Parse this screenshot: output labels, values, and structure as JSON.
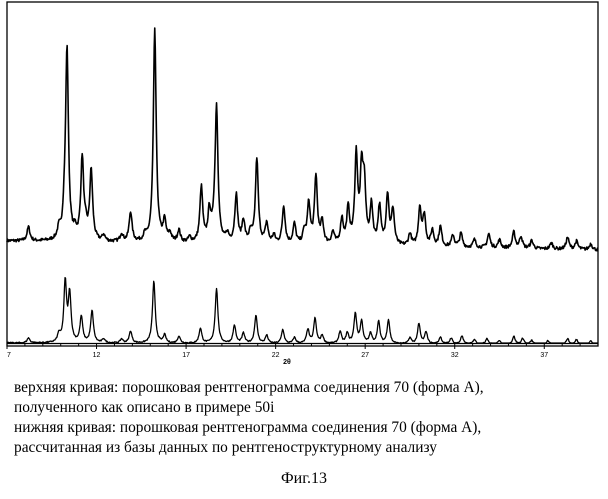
{
  "chart_data": {
    "type": "line",
    "title": "",
    "xlabel": "2θ",
    "ylabel": "",
    "xlim": [
      7,
      40
    ],
    "x_ticks": [
      7,
      12,
      17,
      22,
      27,
      32,
      37
    ],
    "grid": false,
    "legend": "none",
    "baseline": {
      "upper": 15,
      "lower": 3
    },
    "series": [
      {
        "peaks": [
          [
            8.2,
            14
          ],
          [
            9.9,
            10
          ],
          [
            10.2,
            18
          ],
          [
            10.35,
            190
          ],
          [
            10.8,
            8
          ],
          [
            11.2,
            82
          ],
          [
            11.4,
            10
          ],
          [
            11.7,
            70
          ],
          [
            12.4,
            6
          ],
          [
            13.4,
            8
          ],
          [
            13.9,
            30
          ],
          [
            14.7,
            6
          ],
          [
            15.25,
            212
          ],
          [
            15.8,
            20
          ],
          [
            16.1,
            8
          ],
          [
            16.6,
            12
          ],
          [
            17.2,
            5
          ],
          [
            17.85,
            55
          ],
          [
            18.3,
            30
          ],
          [
            18.55,
            10
          ],
          [
            18.7,
            135
          ],
          [
            19.3,
            8
          ],
          [
            19.8,
            48
          ],
          [
            20.2,
            22
          ],
          [
            20.6,
            10
          ],
          [
            20.95,
            85
          ],
          [
            21.5,
            20
          ],
          [
            21.9,
            8
          ],
          [
            22.45,
            38
          ],
          [
            23.05,
            20
          ],
          [
            23.6,
            12
          ],
          [
            23.85,
            40
          ],
          [
            24.25,
            68
          ],
          [
            24.6,
            22
          ],
          [
            25.2,
            12
          ],
          [
            25.7,
            25
          ],
          [
            26.05,
            35
          ],
          [
            26.5,
            88
          ],
          [
            26.8,
            68
          ],
          [
            26.95,
            55
          ],
          [
            27.35,
            38
          ],
          [
            27.8,
            38
          ],
          [
            28.25,
            50
          ],
          [
            28.55,
            35
          ],
          [
            29.5,
            12
          ],
          [
            30.05,
            38
          ],
          [
            30.3,
            30
          ],
          [
            30.75,
            16
          ],
          [
            31.2,
            20
          ],
          [
            31.9,
            12
          ],
          [
            32.35,
            14
          ],
          [
            33.1,
            8
          ],
          [
            33.9,
            14
          ],
          [
            34.5,
            8
          ],
          [
            35.3,
            16
          ],
          [
            35.7,
            12
          ],
          [
            36.3,
            8
          ],
          [
            37.4,
            6
          ],
          [
            38.3,
            12
          ],
          [
            38.8,
            8
          ],
          [
            39.6,
            6
          ]
        ]
      },
      {
        "peaks": [
          [
            8.2,
            5
          ],
          [
            9.9,
            8
          ],
          [
            10.25,
            60
          ],
          [
            10.5,
            48
          ],
          [
            11.15,
            26
          ],
          [
            11.75,
            32
          ],
          [
            12.4,
            4
          ],
          [
            13.4,
            4
          ],
          [
            13.9,
            12
          ],
          [
            15.2,
            62
          ],
          [
            15.8,
            8
          ],
          [
            16.6,
            7
          ],
          [
            17.8,
            15
          ],
          [
            18.7,
            55
          ],
          [
            19.7,
            18
          ],
          [
            20.2,
            10
          ],
          [
            20.9,
            28
          ],
          [
            21.5,
            8
          ],
          [
            22.4,
            14
          ],
          [
            23.05,
            6
          ],
          [
            23.8,
            14
          ],
          [
            24.2,
            25
          ],
          [
            24.6,
            8
          ],
          [
            25.6,
            12
          ],
          [
            26.0,
            10
          ],
          [
            26.45,
            30
          ],
          [
            26.8,
            22
          ],
          [
            27.3,
            10
          ],
          [
            27.75,
            22
          ],
          [
            28.3,
            24
          ],
          [
            29.5,
            6
          ],
          [
            30.0,
            20
          ],
          [
            30.4,
            12
          ],
          [
            31.2,
            7
          ],
          [
            31.8,
            6
          ],
          [
            32.4,
            8
          ],
          [
            33.1,
            5
          ],
          [
            33.8,
            6
          ],
          [
            34.5,
            4
          ],
          [
            35.3,
            8
          ],
          [
            35.8,
            6
          ],
          [
            36.3,
            4
          ],
          [
            37.2,
            4
          ],
          [
            38.3,
            6
          ],
          [
            38.8,
            5
          ],
          [
            39.6,
            4
          ]
        ]
      }
    ]
  },
  "caption": {
    "line1": "верхняя кривая: порошковая рентгенограмма соединения 70 (форма А),",
    "line2": "полученного как описано в примере 50i",
    "line3": "нижняя кривая: порошковая рентгенограмма соединения 70 (форма А),",
    "line4": "рассчитанная из базы данных по рентгеноструктурному анализу"
  },
  "figure_label": "Фиг.13"
}
